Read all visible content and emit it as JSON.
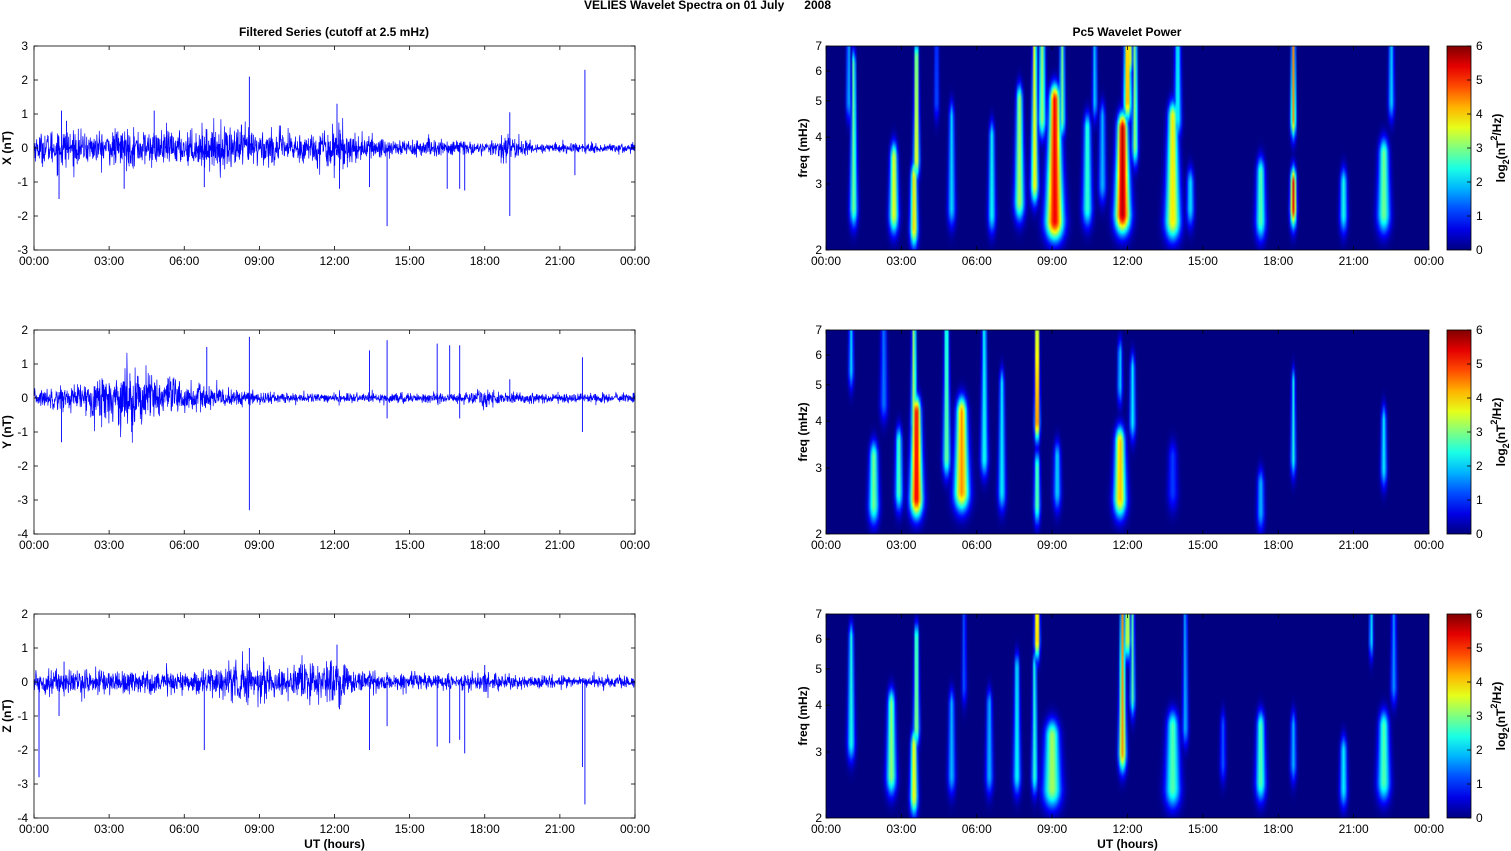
{
  "figure": {
    "title": "VELIES Wavelet Spectra on 01 July",
    "year": "2008",
    "left_title": "Filtered Series (cutoff at 2.5 mHz)",
    "right_title": "Pc5 Wavelet Power"
  },
  "chart_data": [
    {
      "id": "x-series",
      "type": "line",
      "ylabel": "X (nT)",
      "xlabel": "",
      "ylim": [
        -3,
        3
      ],
      "yticks": [
        "-3",
        "-2",
        "-1",
        "0",
        "1",
        "2",
        "3"
      ],
      "xticks": [
        "00:00",
        "03:00",
        "06:00",
        "09:00",
        "12:00",
        "15:00",
        "18:00",
        "21:00",
        "00:00"
      ],
      "xlim_hours": [
        0,
        24
      ],
      "series": [
        {
          "color": "#0000ff"
        }
      ],
      "noise_envelope": [
        [
          0,
          0.3
        ],
        [
          1,
          0.5
        ],
        [
          2,
          0.35
        ],
        [
          3.5,
          0.45
        ],
        [
          6,
          0.4
        ],
        [
          8,
          0.55
        ],
        [
          9,
          0.45
        ],
        [
          11,
          0.35
        ],
        [
          12,
          0.6
        ],
        [
          13,
          0.3
        ],
        [
          15,
          0.22
        ],
        [
          17,
          0.2
        ],
        [
          18,
          0.12
        ],
        [
          19,
          0.3
        ],
        [
          20,
          0.12
        ],
        [
          24,
          0.12
        ]
      ],
      "spikes": [
        [
          1,
          -1.5
        ],
        [
          1.1,
          1.1
        ],
        [
          1.3,
          0.8
        ],
        [
          3.6,
          -1.2
        ],
        [
          4.8,
          1.1
        ],
        [
          6.8,
          -1.15
        ],
        [
          8.6,
          2.1
        ],
        [
          12.1,
          1.3
        ],
        [
          12.2,
          -1.2
        ],
        [
          13.4,
          -1.15
        ],
        [
          14.1,
          -2.3
        ],
        [
          16.5,
          -1.2
        ],
        [
          17,
          -1.2
        ],
        [
          17.2,
          -1.25
        ],
        [
          19,
          1.05
        ],
        [
          19,
          -2
        ],
        [
          21.6,
          -0.8
        ],
        [
          22,
          2.3
        ]
      ]
    },
    {
      "id": "y-series",
      "type": "line",
      "ylabel": "Y (nT)",
      "xlabel": "",
      "ylim": [
        -4,
        2
      ],
      "yticks": [
        "-4",
        "-3",
        "-2",
        "-1",
        "0",
        "1",
        "2"
      ],
      "xticks": [
        "00:00",
        "03:00",
        "06:00",
        "09:00",
        "12:00",
        "15:00",
        "18:00",
        "21:00",
        "00:00"
      ],
      "xlim_hours": [
        0,
        24
      ],
      "series": [
        {
          "color": "#0000ff"
        }
      ],
      "noise_envelope": [
        [
          0,
          0.2
        ],
        [
          2,
          0.35
        ],
        [
          3.5,
          0.75
        ],
        [
          5,
          0.6
        ],
        [
          6,
          0.4
        ],
        [
          8,
          0.2
        ],
        [
          9,
          0.15
        ],
        [
          12,
          0.1
        ],
        [
          15,
          0.12
        ],
        [
          17,
          0.12
        ],
        [
          18,
          0.22
        ],
        [
          19,
          0.12
        ],
        [
          24,
          0.12
        ]
      ],
      "spikes": [
        [
          1.1,
          -1.3
        ],
        [
          3.9,
          -1
        ],
        [
          6.9,
          1.5
        ],
        [
          8.6,
          1.8
        ],
        [
          8.6,
          -3.3
        ],
        [
          13.4,
          1.4
        ],
        [
          14.1,
          1.7
        ],
        [
          14.1,
          -0.6
        ],
        [
          16.1,
          1.6
        ],
        [
          16.6,
          1.55
        ],
        [
          17,
          1.55
        ],
        [
          17,
          -0.6
        ],
        [
          19,
          0.55
        ],
        [
          21.9,
          1.2
        ],
        [
          21.9,
          -1
        ]
      ]
    },
    {
      "id": "z-series",
      "type": "line",
      "ylabel": "Z (nT)",
      "xlabel": "UT (hours)",
      "ylim": [
        -4,
        2
      ],
      "yticks": [
        "-4",
        "-3",
        "-2",
        "-1",
        "0",
        "1",
        "2"
      ],
      "xticks": [
        "00:00",
        "03:00",
        "06:00",
        "09:00",
        "12:00",
        "15:00",
        "18:00",
        "21:00",
        "00:00"
      ],
      "xlim_hours": [
        0,
        24
      ],
      "series": [
        {
          "color": "#0000ff"
        }
      ],
      "noise_envelope": [
        [
          0,
          0.3
        ],
        [
          2,
          0.3
        ],
        [
          4,
          0.3
        ],
        [
          6,
          0.25
        ],
        [
          8.6,
          0.5
        ],
        [
          10,
          0.3
        ],
        [
          12.1,
          0.6
        ],
        [
          13,
          0.25
        ],
        [
          15,
          0.2
        ],
        [
          17,
          0.15
        ],
        [
          18,
          0.3
        ],
        [
          19,
          0.15
        ],
        [
          24,
          0.15
        ]
      ],
      "spikes": [
        [
          0.2,
          -2.8
        ],
        [
          0.2,
          -1
        ],
        [
          1,
          -1
        ],
        [
          1.2,
          0.6
        ],
        [
          6.8,
          -2
        ],
        [
          8.6,
          1
        ],
        [
          12.1,
          1.1
        ],
        [
          12.2,
          -0.8
        ],
        [
          13.4,
          -2
        ],
        [
          14.1,
          -1.3
        ],
        [
          16.1,
          -1.9
        ],
        [
          16.6,
          -1.8
        ],
        [
          17,
          -1.7
        ],
        [
          17.2,
          -2.1
        ],
        [
          21.9,
          -2.5
        ],
        [
          22,
          -3.6
        ],
        [
          18,
          0.5
        ]
      ]
    },
    {
      "id": "x-wavelet",
      "type": "heatmap",
      "ylabel": "freq (mHz)",
      "xlabel": "",
      "ylim_mhz": [
        2,
        7
      ],
      "yticks": [
        "2",
        "3",
        "4",
        "5",
        "6",
        "7"
      ],
      "xticks": [
        "00:00",
        "03:00",
        "06:00",
        "09:00",
        "12:00",
        "15:00",
        "18:00",
        "21:00",
        "00:00"
      ],
      "xlim_hours": [
        0,
        24
      ],
      "colorbar": {
        "label_base": "log",
        "label_sub": "2",
        "label_mid": "(nT",
        "label_sup": "2",
        "label_end": "/Hz)",
        "ticks": [
          "0",
          "1",
          "2",
          "3",
          "4",
          "5",
          "6"
        ],
        "range": [
          0,
          6
        ]
      },
      "blobs": [
        [
          1.1,
          2.6,
          0.15,
          6.2,
          3.2
        ],
        [
          2.7,
          2.5,
          0.18,
          3.5,
          4
        ],
        [
          3.5,
          2.3,
          0.15,
          3.1,
          4.4
        ],
        [
          3.6,
          3.5,
          0.12,
          6.5,
          4.2
        ],
        [
          5.0,
          2.6,
          0.15,
          4.5,
          2.2
        ],
        [
          6.6,
          2.5,
          0.15,
          4,
          2.5
        ],
        [
          7.7,
          2.7,
          0.2,
          5,
          3.6
        ],
        [
          8.3,
          3.0,
          0.15,
          7,
          4.2
        ],
        [
          9.1,
          2.4,
          0.35,
          5,
          5.8
        ],
        [
          8.6,
          4.5,
          0.15,
          7,
          3.5
        ],
        [
          9.4,
          4.5,
          0.12,
          7,
          3.2
        ],
        [
          10.4,
          2.6,
          0.2,
          4.2,
          2.8
        ],
        [
          11.8,
          2.5,
          0.3,
          4.2,
          6.2
        ],
        [
          12.0,
          5.0,
          0.15,
          7,
          4.8
        ],
        [
          12.1,
          6.5,
          0.1,
          7,
          3.8
        ],
        [
          12.3,
          3.8,
          0.12,
          7,
          3.5
        ],
        [
          13.8,
          2.4,
          0.3,
          4.5,
          4.2
        ],
        [
          14.0,
          4.5,
          0.15,
          7,
          2.5
        ],
        [
          14.5,
          2.6,
          0.15,
          3,
          2.3
        ],
        [
          17.3,
          2.4,
          0.2,
          3.2,
          3
        ],
        [
          18.6,
          4.5,
          0.1,
          7,
          4.8
        ],
        [
          18.6,
          2.6,
          0.12,
          3,
          5.8
        ],
        [
          20.6,
          2.5,
          0.15,
          3,
          2.6
        ],
        [
          22.2,
          2.5,
          0.25,
          3.6,
          3.2
        ],
        [
          22.5,
          5.0,
          0.12,
          7,
          2.2
        ],
        [
          0.9,
          5.0,
          0.1,
          7,
          2
        ],
        [
          4.4,
          5.0,
          0.1,
          7,
          1.4
        ],
        [
          10.7,
          5.0,
          0.1,
          7,
          2.2
        ],
        [
          11.0,
          3.0,
          0.15,
          4.5,
          2
        ]
      ]
    },
    {
      "id": "y-wavelet",
      "type": "heatmap",
      "ylabel": "freq (mHz)",
      "xlabel": "",
      "ylim_mhz": [
        2,
        7
      ],
      "yticks": [
        "2",
        "3",
        "4",
        "5",
        "6",
        "7"
      ],
      "xticks": [
        "00:00",
        "03:00",
        "06:00",
        "09:00",
        "12:00",
        "15:00",
        "18:00",
        "21:00",
        "00:00"
      ],
      "xlim_hours": [
        0,
        24
      ],
      "colorbar": {
        "label_base": "log",
        "label_sub": "2",
        "label_mid": "(nT",
        "label_sup": "2",
        "label_end": "/Hz)",
        "ticks": [
          "0",
          "1",
          "2",
          "3",
          "4",
          "5",
          "6"
        ],
        "range": [
          0,
          6
        ]
      },
      "blobs": [
        [
          1.0,
          5.5,
          0.1,
          7,
          2.2
        ],
        [
          1.9,
          2.4,
          0.2,
          3.2,
          3.2
        ],
        [
          2.9,
          2.6,
          0.15,
          3.5,
          3
        ],
        [
          3.6,
          2.5,
          0.25,
          4.2,
          5.8
        ],
        [
          3.5,
          4.0,
          0.12,
          7,
          3.6
        ],
        [
          4.8,
          3.2,
          0.15,
          7,
          3.2
        ],
        [
          5.4,
          2.6,
          0.3,
          4.2,
          4.8
        ],
        [
          6.3,
          3.2,
          0.15,
          7,
          2.6
        ],
        [
          7.0,
          2.6,
          0.15,
          5,
          2.4
        ],
        [
          8.4,
          4.0,
          0.1,
          7,
          5.5
        ],
        [
          8.4,
          2.4,
          0.12,
          3,
          3.2
        ],
        [
          9.2,
          2.6,
          0.15,
          3.2,
          2.2
        ],
        [
          11.7,
          2.5,
          0.25,
          3.5,
          4.5
        ],
        [
          11.7,
          5.0,
          0.1,
          6,
          2.2
        ],
        [
          12.2,
          4.0,
          0.12,
          5.5,
          2.4
        ],
        [
          13.8,
          2.6,
          0.2,
          3.2,
          1.2
        ],
        [
          17.3,
          2.3,
          0.15,
          2.7,
          2
        ],
        [
          18.6,
          3.2,
          0.1,
          5,
          2.6
        ],
        [
          22.2,
          3.0,
          0.12,
          4,
          2.4
        ],
        [
          2.3,
          4.5,
          0.15,
          7,
          1.6
        ]
      ]
    },
    {
      "id": "z-wavelet",
      "type": "heatmap",
      "ylabel": "freq (mHz)",
      "xlabel": "UT (hours)",
      "ylim_mhz": [
        2,
        7
      ],
      "yticks": [
        "2",
        "3",
        "4",
        "5",
        "6",
        "7"
      ],
      "xticks": [
        "00:00",
        "03:00",
        "06:00",
        "09:00",
        "12:00",
        "15:00",
        "18:00",
        "21:00",
        "00:00"
      ],
      "xlim_hours": [
        0,
        24
      ],
      "colorbar": {
        "label_base": "log",
        "label_sub": "2",
        "label_mid": "(nT",
        "label_sup": "2",
        "label_end": "/Hz)",
        "ticks": [
          "0",
          "1",
          "2",
          "3",
          "4",
          "5",
          "6"
        ],
        "range": [
          0,
          6
        ]
      },
      "blobs": [
        [
          1.0,
          3.2,
          0.15,
          6,
          2.6
        ],
        [
          2.6,
          2.6,
          0.2,
          4,
          3.4
        ],
        [
          3.5,
          2.3,
          0.15,
          3.1,
          4.2
        ],
        [
          3.6,
          3.5,
          0.12,
          6,
          3.5
        ],
        [
          5.0,
          2.6,
          0.15,
          4,
          2
        ],
        [
          6.5,
          2.6,
          0.15,
          4,
          2
        ],
        [
          7.6,
          2.6,
          0.15,
          5,
          2.5
        ],
        [
          8.4,
          6.0,
          0.1,
          7,
          5
        ],
        [
          8.3,
          2.6,
          0.12,
          5,
          2.8
        ],
        [
          9.0,
          2.4,
          0.35,
          3.3,
          3.5
        ],
        [
          11.8,
          3.0,
          0.15,
          7,
          4.8
        ],
        [
          12.0,
          6.0,
          0.12,
          7,
          4
        ],
        [
          12.2,
          4.2,
          0.1,
          7,
          3
        ],
        [
          13.8,
          2.4,
          0.3,
          3.5,
          3
        ],
        [
          14.3,
          3.5,
          0.12,
          7,
          2
        ],
        [
          17.3,
          2.5,
          0.2,
          3.5,
          3
        ],
        [
          18.6,
          2.8,
          0.12,
          3.5,
          2
        ],
        [
          20.6,
          2.4,
          0.15,
          3,
          2.4
        ],
        [
          21.7,
          6.0,
          0.08,
          7,
          2.4
        ],
        [
          22.2,
          2.5,
          0.25,
          3.5,
          3
        ],
        [
          22.6,
          4.5,
          0.12,
          7,
          1.8
        ],
        [
          15.8,
          2.8,
          0.12,
          3.5,
          1.4
        ],
        [
          5.5,
          4.5,
          0.1,
          7,
          1.4
        ]
      ]
    }
  ]
}
